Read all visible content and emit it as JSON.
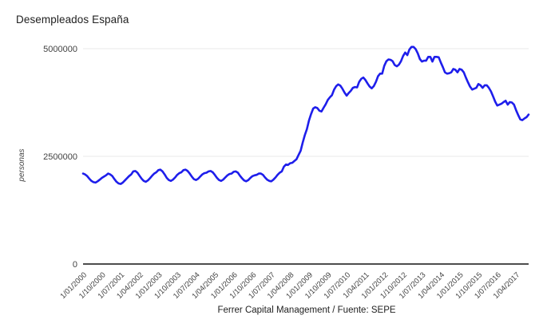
{
  "chart": {
    "title": "Desempleados España",
    "footer": "Ferrer Capital Management / Fuente: SEPE",
    "colors": {
      "line": "#1e1eeb",
      "grid": "#e8e8e8",
      "axis": "#4d4d4d",
      "tick_text": "#424242",
      "title_text": "#212121"
    },
    "chart_data": {
      "type": "line",
      "title": "Desempleados España",
      "xlabel": "",
      "ylabel": "personas",
      "source_caption": "Ferrer Capital Management / Fuente: SEPE",
      "frequency": "monthly",
      "x_start": "2000-01",
      "x_end": "2017-10",
      "ylim": [
        0,
        5200000
      ],
      "grid": "horizontal",
      "legend": "none",
      "y_ticks": [
        0,
        2500000,
        5000000
      ],
      "y_tick_labels": [
        "0",
        "2500000",
        "5000000"
      ],
      "x_tick_every_months": 9,
      "x_tick_labels": [
        "1/01/2000",
        "1/10/2000",
        "1/07/2001",
        "1/04/2002",
        "1/01/2003",
        "1/10/2003",
        "1/07/2004",
        "1/04/2005",
        "1/01/2006",
        "1/10/2006",
        "1/07/2007",
        "1/04/2008",
        "1/01/2009",
        "1/10/2009",
        "1/07/2010",
        "1/04/2011",
        "1/01/2012",
        "1/10/2012",
        "1/07/2013",
        "1/04/2014",
        "1/01/2015",
        "1/10/2015",
        "1/07/2016",
        "1/04/2017"
      ],
      "series": [
        {
          "name": "Desempleados",
          "values": [
            2100000,
            2080000,
            2040000,
            1980000,
            1930000,
            1900000,
            1890000,
            1920000,
            1960000,
            2000000,
            2030000,
            2060000,
            2100000,
            2080000,
            2040000,
            1970000,
            1910000,
            1870000,
            1860000,
            1890000,
            1940000,
            1990000,
            2040000,
            2080000,
            2150000,
            2160000,
            2120000,
            2050000,
            1980000,
            1930000,
            1910000,
            1940000,
            1990000,
            2050000,
            2100000,
            2130000,
            2180000,
            2190000,
            2150000,
            2080000,
            2000000,
            1950000,
            1930000,
            1960000,
            2010000,
            2070000,
            2110000,
            2130000,
            2180000,
            2190000,
            2160000,
            2100000,
            2030000,
            1970000,
            1950000,
            1980000,
            2030000,
            2080000,
            2110000,
            2120000,
            2150000,
            2160000,
            2130000,
            2070000,
            2000000,
            1950000,
            1930000,
            1960000,
            2010000,
            2060000,
            2090000,
            2100000,
            2140000,
            2150000,
            2120000,
            2050000,
            1990000,
            1940000,
            1920000,
            1950000,
            2000000,
            2040000,
            2060000,
            2070000,
            2100000,
            2100000,
            2070000,
            2010000,
            1960000,
            1930000,
            1920000,
            1960000,
            2010000,
            2070000,
            2120000,
            2150000,
            2260000,
            2310000,
            2300000,
            2340000,
            2350000,
            2390000,
            2430000,
            2530000,
            2630000,
            2820000,
            2990000,
            3130000,
            3330000,
            3480000,
            3610000,
            3640000,
            3620000,
            3560000,
            3540000,
            3630000,
            3710000,
            3810000,
            3870000,
            3920000,
            4050000,
            4130000,
            4170000,
            4140000,
            4070000,
            3980000,
            3910000,
            3970000,
            4020000,
            4090000,
            4110000,
            4100000,
            4230000,
            4300000,
            4330000,
            4270000,
            4190000,
            4120000,
            4080000,
            4130000,
            4230000,
            4360000,
            4420000,
            4420000,
            4600000,
            4710000,
            4750000,
            4740000,
            4710000,
            4620000,
            4590000,
            4630000,
            4710000,
            4830000,
            4910000,
            4850000,
            4980000,
            5040000,
            5040000,
            4990000,
            4890000,
            4760000,
            4700000,
            4720000,
            4720000,
            4810000,
            4810000,
            4700000,
            4810000,
            4810000,
            4800000,
            4680000,
            4570000,
            4450000,
            4420000,
            4430000,
            4450000,
            4530000,
            4510000,
            4450000,
            4530000,
            4510000,
            4450000,
            4330000,
            4220000,
            4120000,
            4050000,
            4070000,
            4090000,
            4180000,
            4150000,
            4090000,
            4150000,
            4150000,
            4090000,
            4010000,
            3890000,
            3770000,
            3680000,
            3700000,
            3720000,
            3760000,
            3790000,
            3700000,
            3760000,
            3750000,
            3700000,
            3570000,
            3460000,
            3360000,
            3340000,
            3380000,
            3410000,
            3470000
          ]
        }
      ]
    }
  }
}
